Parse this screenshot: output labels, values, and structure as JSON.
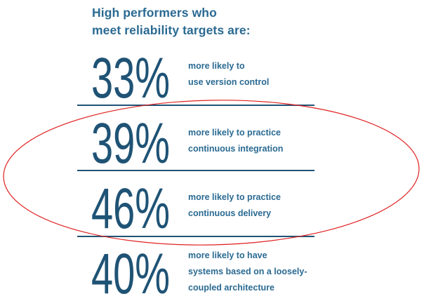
{
  "heading": {
    "line1": "High performers who",
    "line2": "meet reliability targets are:"
  },
  "stats": [
    {
      "percent": "33%",
      "line1": "more likely to",
      "line2": "use version control"
    },
    {
      "percent": "39%",
      "line1": "more likely to practice",
      "line2": "continuous integration"
    },
    {
      "percent": "46%",
      "line1": "more likely to practice",
      "line2": "continuous delivery"
    },
    {
      "percent": "40%",
      "line1": "more likely to have",
      "line2": "systems based on a loosely-",
      "line3": "coupled architecture"
    }
  ],
  "colors": {
    "heading": "#2a6a92",
    "percent": "#1f5375",
    "divider": "#1f5375",
    "highlight": "#e02020"
  }
}
